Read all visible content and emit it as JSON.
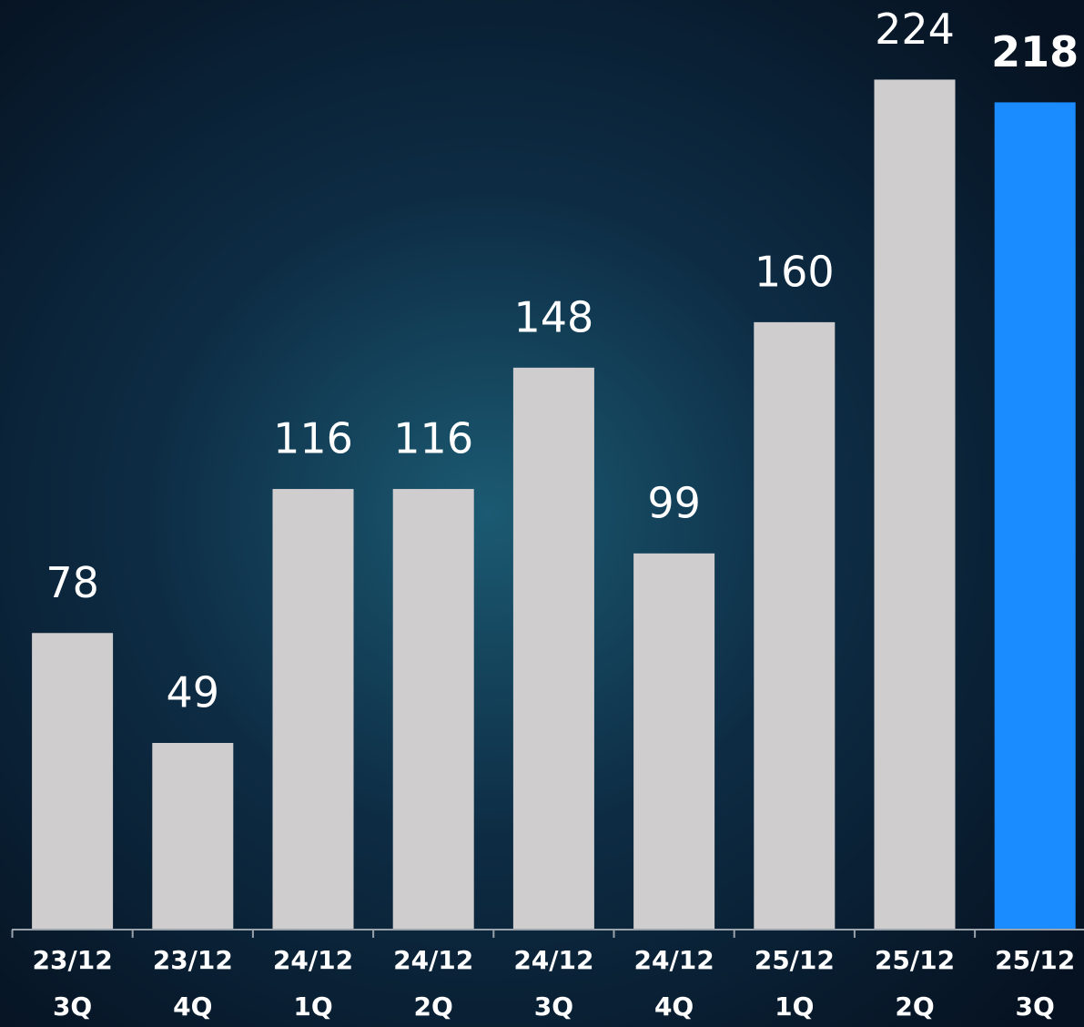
{
  "chart_data": {
    "type": "bar",
    "categories": [
      [
        "23/12",
        "3Q"
      ],
      [
        "23/12",
        "4Q"
      ],
      [
        "24/12",
        "1Q"
      ],
      [
        "24/12",
        "2Q"
      ],
      [
        "24/12",
        "3Q"
      ],
      [
        "24/12",
        "4Q"
      ],
      [
        "25/12",
        "1Q"
      ],
      [
        "25/12",
        "2Q"
      ],
      [
        "25/12",
        "3Q"
      ]
    ],
    "values": [
      78,
      49,
      116,
      116,
      148,
      99,
      160,
      224,
      218
    ],
    "color": "#d0cdce",
    "colors": [
      "#d0cdce",
      "#d0cdce",
      "#d0cdce",
      "#d0cdce",
      "#d0cdce",
      "#d0cdce",
      "#d0cdce",
      "#d0cdce",
      "#1a8cff"
    ],
    "ylim": [
      0,
      245
    ]
  }
}
